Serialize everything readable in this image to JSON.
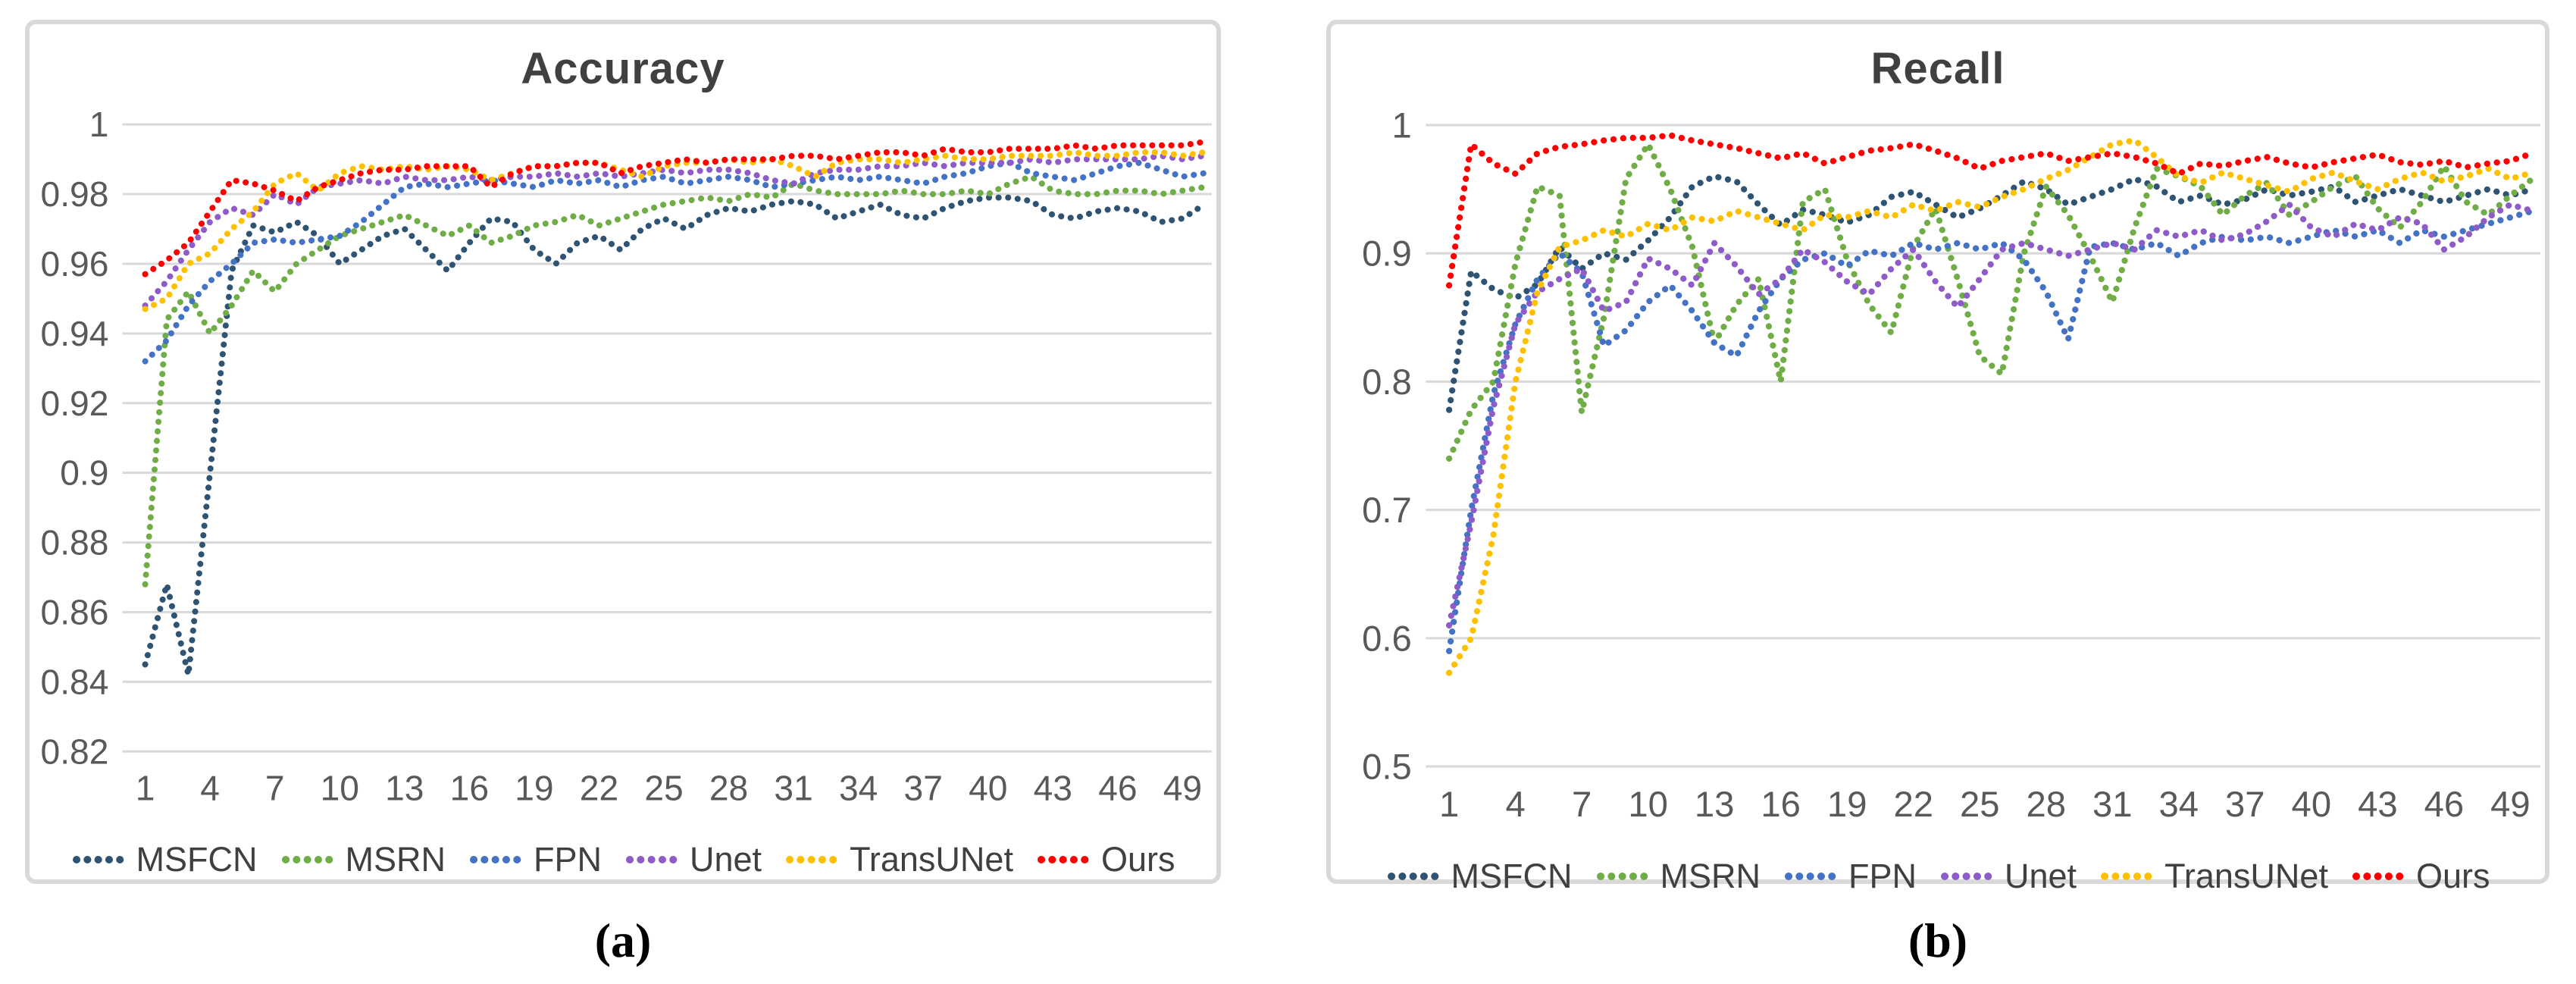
{
  "figure": {
    "background": "#ffffff",
    "captions": [
      "(a)",
      "(b)"
    ]
  },
  "styles": {
    "gridline_color": "#d9d9d9",
    "axis_label_color": "#595959",
    "title_color": "#404040",
    "legend_text_color": "#404040",
    "panel_border_color": "#d9d9d9",
    "series_colors": {
      "MSFCN": "#2f5473",
      "MSRN": "#70ad47",
      "FPN": "#4472c4",
      "Unet": "#8e5bc8",
      "TransUNet": "#ffc000",
      "Ours": "#ff0000"
    }
  },
  "chart_data": [
    {
      "type": "line",
      "line_style": "dotted",
      "title": "Accuracy",
      "xlabel": "",
      "ylabel": "",
      "x_range": [
        1,
        50
      ],
      "x_tick_labels": [
        "1",
        "4",
        "7",
        "10",
        "13",
        "16",
        "19",
        "22",
        "25",
        "28",
        "31",
        "34",
        "37",
        "40",
        "43",
        "46",
        "49"
      ],
      "ylim": [
        0.82,
        1.0
      ],
      "y_tick_labels": [
        "1",
        "0.98",
        "0.96",
        "0.94",
        "0.92",
        "0.9",
        "0.88",
        "0.86",
        "0.84",
        "0.82"
      ],
      "grid": "horizontal",
      "legend_position": "bottom",
      "series": [
        {
          "name": "MSFCN",
          "color": "#2f5473",
          "values": [
            0.845,
            0.868,
            0.842,
            0.9,
            0.958,
            0.971,
            0.969,
            0.972,
            0.968,
            0.96,
            0.964,
            0.968,
            0.97,
            0.964,
            0.958,
            0.966,
            0.973,
            0.972,
            0.964,
            0.96,
            0.966,
            0.968,
            0.964,
            0.97,
            0.973,
            0.97,
            0.974,
            0.976,
            0.975,
            0.977,
            0.978,
            0.977,
            0.973,
            0.975,
            0.977,
            0.974,
            0.973,
            0.976,
            0.978,
            0.979,
            0.979,
            0.978,
            0.974,
            0.973,
            0.975,
            0.976,
            0.975,
            0.972,
            0.973,
            0.977
          ]
        },
        {
          "name": "MSRN",
          "color": "#70ad47",
          "values": [
            0.868,
            0.944,
            0.952,
            0.94,
            0.948,
            0.958,
            0.952,
            0.96,
            0.964,
            0.968,
            0.97,
            0.972,
            0.974,
            0.971,
            0.968,
            0.971,
            0.966,
            0.968,
            0.971,
            0.972,
            0.974,
            0.971,
            0.973,
            0.975,
            0.977,
            0.978,
            0.979,
            0.978,
            0.98,
            0.979,
            0.983,
            0.981,
            0.98,
            0.98,
            0.98,
            0.981,
            0.98,
            0.98,
            0.981,
            0.98,
            0.983,
            0.985,
            0.981,
            0.98,
            0.98,
            0.981,
            0.981,
            0.98,
            0.981,
            0.982
          ]
        },
        {
          "name": "FPN",
          "color": "#4472c4",
          "values": [
            0.932,
            0.938,
            0.948,
            0.955,
            0.96,
            0.966,
            0.967,
            0.966,
            0.967,
            0.968,
            0.972,
            0.977,
            0.982,
            0.983,
            0.982,
            0.983,
            0.984,
            0.983,
            0.982,
            0.984,
            0.983,
            0.984,
            0.982,
            0.984,
            0.985,
            0.983,
            0.984,
            0.985,
            0.984,
            0.982,
            0.983,
            0.984,
            0.985,
            0.984,
            0.985,
            0.984,
            0.983,
            0.985,
            0.986,
            0.988,
            0.989,
            0.986,
            0.985,
            0.984,
            0.986,
            0.988,
            0.989,
            0.987,
            0.985,
            0.986
          ]
        },
        {
          "name": "Unet",
          "color": "#8e5bc8",
          "values": [
            0.948,
            0.955,
            0.964,
            0.972,
            0.976,
            0.974,
            0.98,
            0.977,
            0.982,
            0.983,
            0.984,
            0.983,
            0.985,
            0.984,
            0.984,
            0.985,
            0.984,
            0.985,
            0.985,
            0.986,
            0.985,
            0.986,
            0.985,
            0.986,
            0.987,
            0.986,
            0.987,
            0.987,
            0.986,
            0.984,
            0.983,
            0.986,
            0.987,
            0.987,
            0.988,
            0.988,
            0.989,
            0.988,
            0.989,
            0.989,
            0.989,
            0.99,
            0.989,
            0.99,
            0.99,
            0.99,
            0.99,
            0.991,
            0.99,
            0.991
          ]
        },
        {
          "name": "TransUNet",
          "color": "#ffc000",
          "values": [
            0.947,
            0.95,
            0.96,
            0.963,
            0.97,
            0.975,
            0.983,
            0.986,
            0.981,
            0.986,
            0.988,
            0.987,
            0.988,
            0.987,
            0.988,
            0.987,
            0.984,
            0.986,
            0.988,
            0.988,
            0.989,
            0.989,
            0.987,
            0.985,
            0.988,
            0.989,
            0.989,
            0.99,
            0.989,
            0.99,
            0.988,
            0.985,
            0.989,
            0.99,
            0.99,
            0.989,
            0.99,
            0.991,
            0.99,
            0.99,
            0.991,
            0.991,
            0.991,
            0.992,
            0.991,
            0.991,
            0.992,
            0.992,
            0.991,
            0.992
          ]
        },
        {
          "name": "Ours",
          "color": "#ff0000",
          "values": [
            0.957,
            0.961,
            0.966,
            0.975,
            0.984,
            0.983,
            0.981,
            0.978,
            0.982,
            0.984,
            0.986,
            0.987,
            0.987,
            0.988,
            0.988,
            0.988,
            0.982,
            0.986,
            0.988,
            0.988,
            0.989,
            0.989,
            0.986,
            0.988,
            0.989,
            0.99,
            0.989,
            0.99,
            0.99,
            0.99,
            0.991,
            0.991,
            0.99,
            0.991,
            0.992,
            0.992,
            0.991,
            0.993,
            0.992,
            0.992,
            0.993,
            0.993,
            0.993,
            0.994,
            0.993,
            0.994,
            0.994,
            0.994,
            0.994,
            0.995
          ]
        }
      ]
    },
    {
      "type": "line",
      "line_style": "dotted",
      "title": "Recall",
      "xlabel": "",
      "ylabel": "",
      "x_range": [
        1,
        50
      ],
      "x_tick_labels": [
        "1",
        "4",
        "7",
        "10",
        "13",
        "16",
        "19",
        "22",
        "25",
        "28",
        "31",
        "34",
        "37",
        "40",
        "43",
        "46",
        "49"
      ],
      "ylim": [
        0.5,
        1.0
      ],
      "y_tick_labels": [
        "1",
        "0.9",
        "0.8",
        "0.7",
        "0.6",
        "0.5"
      ],
      "grid": "horizontal",
      "legend_position": "bottom",
      "series": [
        {
          "name": "MSFCN",
          "color": "#2f5473",
          "values": [
            0.778,
            0.886,
            0.872,
            0.865,
            0.876,
            0.905,
            0.888,
            0.9,
            0.895,
            0.91,
            0.928,
            0.952,
            0.96,
            0.956,
            0.938,
            0.922,
            0.934,
            0.93,
            0.924,
            0.93,
            0.944,
            0.948,
            0.938,
            0.928,
            0.935,
            0.945,
            0.956,
            0.95,
            0.938,
            0.944,
            0.95,
            0.958,
            0.952,
            0.94,
            0.945,
            0.938,
            0.942,
            0.95,
            0.945,
            0.948,
            0.952,
            0.94,
            0.945,
            0.95,
            0.945,
            0.94,
            0.945,
            0.95,
            0.945,
            0.95
          ]
        },
        {
          "name": "MSRN",
          "color": "#70ad47",
          "values": [
            0.74,
            0.778,
            0.8,
            0.892,
            0.952,
            0.945,
            0.776,
            0.85,
            0.958,
            0.985,
            0.95,
            0.905,
            0.83,
            0.86,
            0.88,
            0.8,
            0.94,
            0.95,
            0.895,
            0.86,
            0.838,
            0.905,
            0.935,
            0.88,
            0.82,
            0.806,
            0.9,
            0.952,
            0.93,
            0.898,
            0.862,
            0.92,
            0.966,
            0.96,
            0.952,
            0.93,
            0.945,
            0.955,
            0.93,
            0.94,
            0.952,
            0.96,
            0.935,
            0.92,
            0.94,
            0.968,
            0.94,
            0.93,
            0.945,
            0.958
          ]
        },
        {
          "name": "FPN",
          "color": "#4472c4",
          "values": [
            0.59,
            0.7,
            0.79,
            0.845,
            0.88,
            0.9,
            0.885,
            0.828,
            0.84,
            0.862,
            0.875,
            0.855,
            0.83,
            0.82,
            0.855,
            0.88,
            0.895,
            0.9,
            0.89,
            0.902,
            0.898,
            0.908,
            0.903,
            0.908,
            0.903,
            0.908,
            0.895,
            0.87,
            0.833,
            0.905,
            0.908,
            0.903,
            0.908,
            0.898,
            0.908,
            0.913,
            0.91,
            0.913,
            0.908,
            0.913,
            0.918,
            0.913,
            0.918,
            0.908,
            0.918,
            0.913,
            0.918,
            0.923,
            0.928,
            0.933
          ]
        },
        {
          "name": "Unet",
          "color": "#8e5bc8",
          "values": [
            0.61,
            0.69,
            0.78,
            0.845,
            0.87,
            0.88,
            0.888,
            0.855,
            0.862,
            0.896,
            0.888,
            0.875,
            0.908,
            0.89,
            0.868,
            0.88,
            0.903,
            0.893,
            0.878,
            0.868,
            0.888,
            0.903,
            0.878,
            0.858,
            0.88,
            0.903,
            0.908,
            0.903,
            0.898,
            0.903,
            0.908,
            0.903,
            0.918,
            0.913,
            0.918,
            0.91,
            0.915,
            0.925,
            0.938,
            0.92,
            0.913,
            0.923,
            0.918,
            0.928,
            0.923,
            0.903,
            0.913,
            0.928,
            0.938,
            0.933
          ]
        },
        {
          "name": "TransUNet",
          "color": "#ffc000",
          "values": [
            0.573,
            0.6,
            0.68,
            0.8,
            0.87,
            0.905,
            0.91,
            0.918,
            0.913,
            0.923,
            0.918,
            0.928,
            0.925,
            0.933,
            0.928,
            0.923,
            0.918,
            0.93,
            0.928,
            0.933,
            0.928,
            0.938,
            0.933,
            0.94,
            0.936,
            0.944,
            0.95,
            0.958,
            0.965,
            0.975,
            0.985,
            0.988,
            0.975,
            0.96,
            0.955,
            0.963,
            0.958,
            0.953,
            0.948,
            0.958,
            0.963,
            0.956,
            0.95,
            0.958,
            0.963,
            0.956,
            0.96,
            0.966,
            0.958,
            0.963
          ]
        },
        {
          "name": "Ours",
          "color": "#ff0000",
          "values": [
            0.875,
            0.985,
            0.97,
            0.962,
            0.978,
            0.983,
            0.985,
            0.988,
            0.99,
            0.99,
            0.992,
            0.988,
            0.985,
            0.982,
            0.978,
            0.974,
            0.978,
            0.97,
            0.975,
            0.98,
            0.982,
            0.985,
            0.98,
            0.974,
            0.966,
            0.972,
            0.975,
            0.978,
            0.972,
            0.975,
            0.978,
            0.975,
            0.97,
            0.962,
            0.97,
            0.968,
            0.972,
            0.975,
            0.97,
            0.967,
            0.971,
            0.974,
            0.977,
            0.971,
            0.969,
            0.972,
            0.967,
            0.97,
            0.972,
            0.978
          ]
        }
      ]
    }
  ]
}
